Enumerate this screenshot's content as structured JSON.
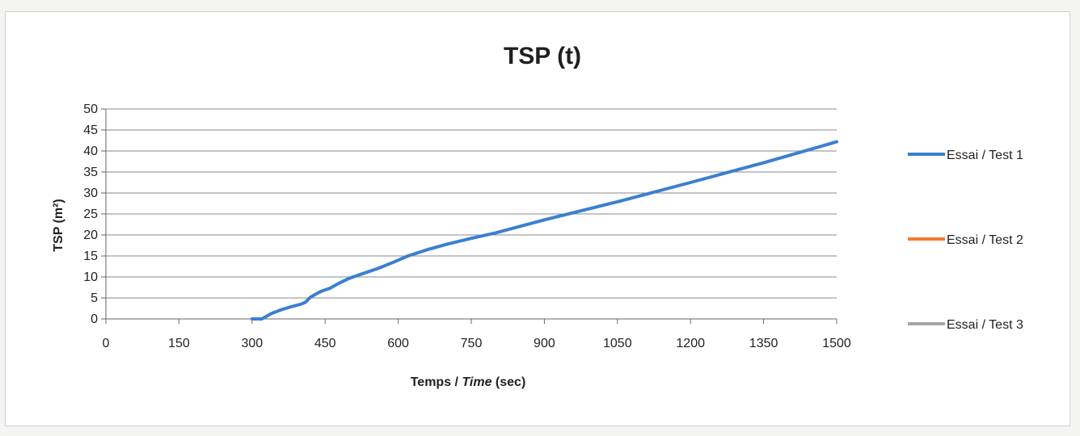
{
  "chart_data": {
    "type": "line",
    "title": "TSP (t)",
    "xlabel": "Temps / Time (sec)",
    "xlabel_parts": {
      "regular": "Temps / ",
      "italic": "Time",
      "suffix": "  (sec)"
    },
    "ylabel": "TSP (m²)",
    "xlim": [
      0,
      1500
    ],
    "ylim": [
      0,
      50
    ],
    "x_ticks": [
      0,
      150,
      300,
      450,
      600,
      750,
      900,
      1050,
      1200,
      1350,
      1500
    ],
    "y_ticks": [
      0,
      5,
      10,
      15,
      20,
      25,
      30,
      35,
      40,
      45,
      50
    ],
    "grid": true,
    "legend_position": "right",
    "series": [
      {
        "name": "Essai / Test 1",
        "color": "#3b7fd0",
        "x": [
          300,
          320,
          340,
          360,
          380,
          400,
          410,
          420,
          440,
          460,
          480,
          500,
          530,
          560,
          590,
          620,
          660,
          700,
          750,
          800,
          900,
          1050,
          1200,
          1350,
          1500
        ],
        "y": [
          0,
          0,
          1.3,
          2.2,
          2.9,
          3.5,
          4.0,
          5.2,
          6.5,
          7.3,
          8.6,
          9.7,
          10.9,
          12.1,
          13.5,
          15.0,
          16.5,
          17.8,
          19.2,
          20.5,
          23.6,
          27.9,
          32.5,
          37.2,
          42.2
        ]
      },
      {
        "name": "Essai / Test 2",
        "color": "#f07d2e",
        "x": [],
        "y": []
      },
      {
        "name": "Essai / Test 3",
        "color": "#a6a6a6",
        "x": [],
        "y": []
      }
    ]
  }
}
